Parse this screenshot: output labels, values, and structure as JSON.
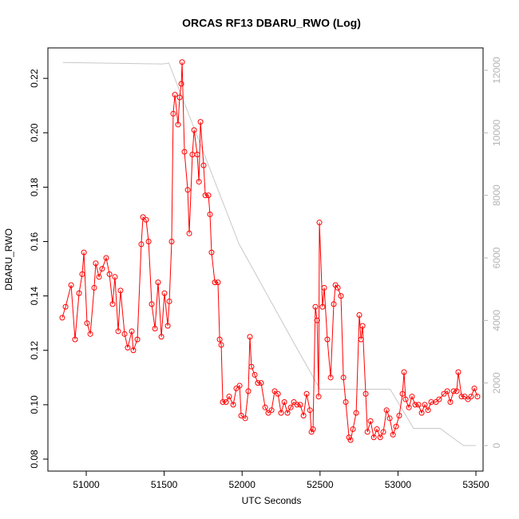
{
  "chart_data": {
    "type": "line",
    "title": "ORCAS RF13 DBARU_RWO (Log)",
    "xlabel": "UTC Seconds",
    "ylabel": "DBARU_RWO",
    "xlim": [
      50754,
      53546
    ],
    "xticks": [
      51000,
      51500,
      52000,
      52500,
      53000,
      53500
    ],
    "ylim": [
      0.0756,
      0.2312
    ],
    "yticks": [
      0.08,
      {
        "value": 0.1,
        "label": "0.10"
      },
      0.12,
      0.14,
      0.16,
      0.18,
      {
        "value": 0.2,
        "label": "0.20"
      },
      0.22
    ],
    "y2lim": [
      -817,
      12715
    ],
    "y2ticks": [
      0,
      2000,
      4000,
      6000,
      8000,
      10000,
      12000
    ],
    "series": [
      {
        "color": "#ff0000",
        "marker": "circle",
        "x": [
          50846,
          50867,
          50903,
          50928,
          50954,
          50974,
          50985,
          51005,
          51026,
          51051,
          51061,
          51082,
          51102,
          51128,
          51149,
          51169,
          51184,
          51205,
          51220,
          51246,
          51266,
          51292,
          51302,
          51328,
          51353,
          51364,
          51384,
          51400,
          51420,
          51441,
          51461,
          51482,
          51502,
          51523,
          51533,
          51548,
          51558,
          51569,
          51589,
          51599,
          51610,
          51615,
          51630,
          51651,
          51661,
          51681,
          51692,
          51712,
          51723,
          51733,
          51753,
          51764,
          51784,
          51794,
          51804,
          51825,
          51845,
          51856,
          51866,
          51876,
          51897,
          51917,
          51943,
          51963,
          51984,
          51994,
          52020,
          52040,
          52050,
          52060,
          52081,
          52101,
          52122,
          52148,
          52168,
          52189,
          52209,
          52230,
          52250,
          52271,
          52291,
          52312,
          52332,
          52353,
          52373,
          52394,
          52414,
          52435,
          52445,
          52455,
          52470,
          52481,
          52491,
          52496,
          52516,
          52527,
          52547,
          52568,
          52588,
          52599,
          52614,
          52634,
          52650,
          52665,
          52686,
          52696,
          52711,
          52732,
          52752,
          52763,
          52773,
          52793,
          52804,
          52824,
          52845,
          52865,
          52886,
          52906,
          52927,
          52947,
          52968,
          52988,
          53008,
          53029,
          53039,
          53049,
          53070,
          53090,
          53111,
          53131,
          53152,
          53172,
          53193,
          53213,
          53244,
          53264,
          53295,
          53316,
          53336,
          53357,
          53377,
          53387,
          53408,
          53428,
          53449,
          53469,
          53490,
          53510
        ],
        "values": [
          0.132,
          0.136,
          0.144,
          0.124,
          0.141,
          0.148,
          0.156,
          0.13,
          0.126,
          0.143,
          0.152,
          0.147,
          0.15,
          0.154,
          0.148,
          0.137,
          0.147,
          0.127,
          0.142,
          0.126,
          0.121,
          0.127,
          0.12,
          0.124,
          0.159,
          0.169,
          0.168,
          0.16,
          0.137,
          0.128,
          0.145,
          0.125,
          0.141,
          0.129,
          0.138,
          0.16,
          0.207,
          0.214,
          0.203,
          0.213,
          0.218,
          0.226,
          0.193,
          0.179,
          0.163,
          0.192,
          0.201,
          0.192,
          0.182,
          0.204,
          0.188,
          0.177,
          0.177,
          0.17,
          0.156,
          0.145,
          0.145,
          0.124,
          0.122,
          0.101,
          0.101,
          0.103,
          0.1,
          0.106,
          0.107,
          0.096,
          0.095,
          0.105,
          0.125,
          0.114,
          0.111,
          0.108,
          0.108,
          0.099,
          0.097,
          0.098,
          0.105,
          0.104,
          0.097,
          0.101,
          0.097,
          0.099,
          0.101,
          0.1,
          0.1,
          0.096,
          0.104,
          0.098,
          0.09,
          0.091,
          0.136,
          0.131,
          0.103,
          0.167,
          0.136,
          0.143,
          0.124,
          0.11,
          0.137,
          0.144,
          0.143,
          0.14,
          0.11,
          0.101,
          0.088,
          0.087,
          0.091,
          0.097,
          0.133,
          0.124,
          0.129,
          0.104,
          0.09,
          0.094,
          0.088,
          0.091,
          0.088,
          0.09,
          0.098,
          0.095,
          0.089,
          0.092,
          0.096,
          0.104,
          0.112,
          0.102,
          0.099,
          0.103,
          0.1,
          0.1,
          0.097,
          0.1,
          0.098,
          0.101,
          0.101,
          0.102,
          0.104,
          0.105,
          0.101,
          0.105,
          0.105,
          0.112,
          0.103,
          0.103,
          0.102,
          0.103,
          0.106,
          0.103
        ]
      },
      {
        "color": "#c8c8c8",
        "axis": "y2",
        "x": [
          50850,
          51490,
          51530,
          51980,
          52330,
          52500,
          52950,
          53100,
          53270,
          53420,
          53500
        ],
        "values": [
          12250,
          12200,
          12230,
          6450,
          3300,
          1800,
          1800,
          550,
          550,
          0,
          0
        ]
      }
    ]
  }
}
